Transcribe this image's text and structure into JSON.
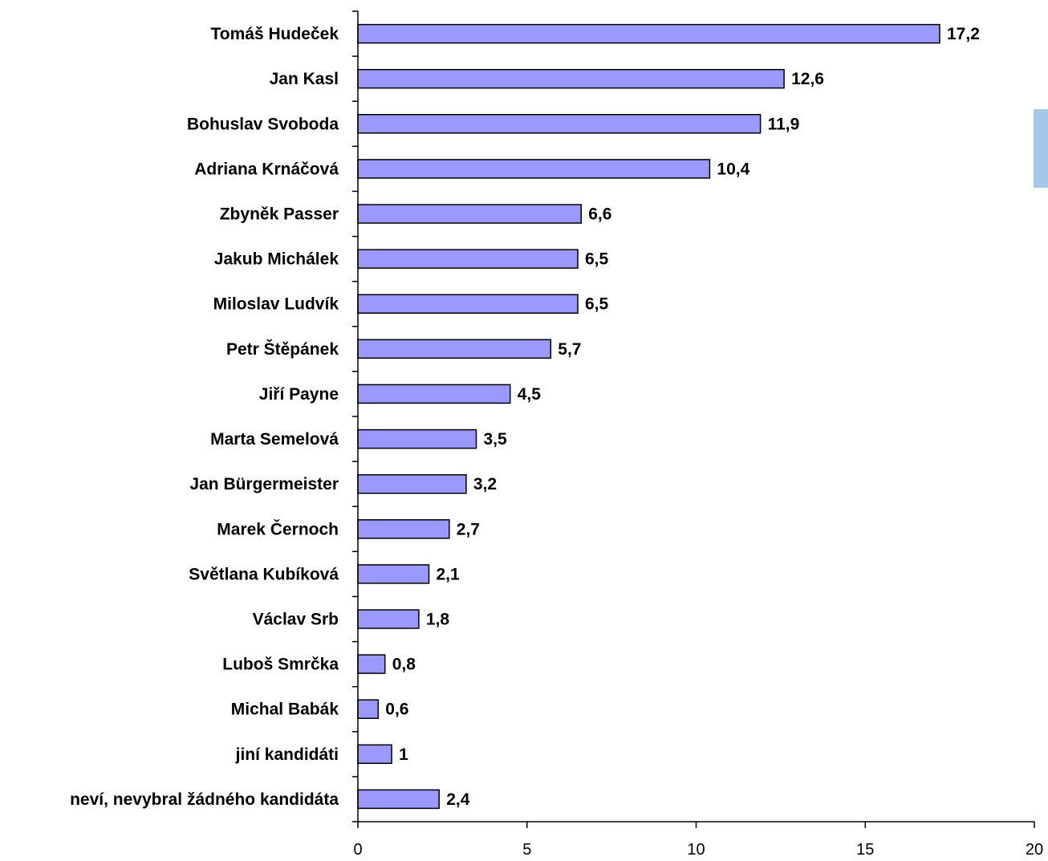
{
  "chart_data": {
    "type": "bar",
    "orientation": "horizontal",
    "categories": [
      "Tomáš Hudeček",
      "Jan Kasl",
      "Bohuslav Svoboda",
      "Adriana Krnáčová",
      "Zbyněk Passer",
      "Jakub Michálek",
      "Miloslav Ludvík",
      "Petr Štěpánek",
      "Jiří Payne",
      "Marta Semelová",
      "Jan Bürgermeister",
      "Marek Černoch",
      "Světlana Kubíková",
      "Václav Srb",
      "Luboš Smrčka",
      "Michal Babák",
      "jiní kandidáti",
      "neví, nevybral žádného kandidáta"
    ],
    "values": [
      17.2,
      12.6,
      11.9,
      10.4,
      6.6,
      6.5,
      6.5,
      5.7,
      4.5,
      3.5,
      3.2,
      2.7,
      2.1,
      1.8,
      0.8,
      0.6,
      1,
      2.4
    ],
    "value_labels": [
      "17,2",
      "12,6",
      "11,9",
      "10,4",
      "6,6",
      "6,5",
      "6,5",
      "5,7",
      "4,5",
      "3,5",
      "3,2",
      "2,7",
      "2,1",
      "1,8",
      "0,8",
      "0,6",
      "1",
      "2,4"
    ],
    "xlim": [
      0,
      20
    ],
    "xticks": [
      0,
      5,
      10,
      15,
      20
    ],
    "xtick_labels": [
      "0",
      "5",
      "10",
      "15",
      "20"
    ],
    "title": "",
    "xlabel": "",
    "ylabel": "",
    "grid": false,
    "colors": {
      "bar_fill": "#9999ff",
      "bar_stroke": "#000000",
      "legend_swatch": "#a5c8e8"
    }
  }
}
